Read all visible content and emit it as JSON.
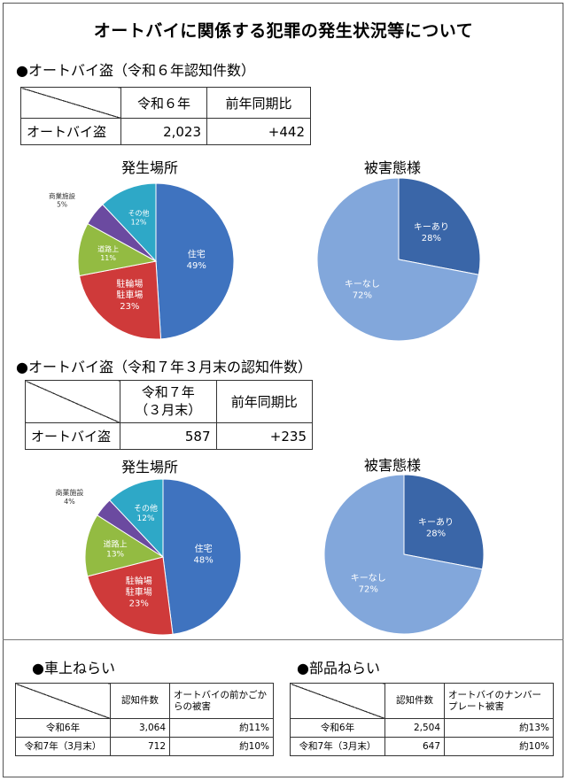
{
  "title": "オートバイに関係する犯罪の発生状況等について",
  "section1": {
    "heading": "●オートバイ盗（令和６年認知件数）",
    "table": {
      "col1": "令和６年",
      "col2": "前年同期比",
      "row_label": "オートバイ盗",
      "count": "2,023",
      "change": "+442"
    }
  },
  "section2": {
    "heading": "●オートバイ盗（令和７年３月末の認知件数）",
    "table": {
      "col1_line1": "令和７年",
      "col1_line2": "（３月末）",
      "col2": "前年同期比",
      "row_label": "オートバイ盗",
      "count": "587",
      "change": "+235"
    }
  },
  "chart_data": [
    {
      "type": "pie",
      "title": "発生場所",
      "categories": [
        "住宅",
        "駐輪場 駐車場",
        "道路上",
        "商業施設",
        "その他"
      ],
      "values": [
        49,
        23,
        11,
        5,
        12
      ],
      "unit": "%",
      "colors": [
        "#3f73bf",
        "#cf3a3a",
        "#93bb42",
        "#6b4aa0",
        "#2ea8c7"
      ]
    },
    {
      "type": "pie",
      "title": "被害態様",
      "categories": [
        "キーあり",
        "キーなし"
      ],
      "values": [
        28,
        72
      ],
      "unit": "%",
      "colors": [
        "#3a66a8",
        "#82a7db"
      ]
    },
    {
      "type": "pie",
      "title": "発生場所",
      "categories": [
        "住宅",
        "駐輪場 駐車場",
        "道路上",
        "商業施設",
        "その他"
      ],
      "values": [
        48,
        23,
        13,
        4,
        12
      ],
      "unit": "%",
      "colors": [
        "#3f73bf",
        "#cf3a3a",
        "#93bb42",
        "#6b4aa0",
        "#2ea8c7"
      ]
    },
    {
      "type": "pie",
      "title": "被害態様",
      "categories": [
        "キーあり",
        "キーなし"
      ],
      "values": [
        28,
        72
      ],
      "unit": "%",
      "colors": [
        "#3a66a8",
        "#82a7db"
      ]
    }
  ],
  "bottom_left": {
    "heading": "●車上ねらい",
    "header_count": "認知件数",
    "header_damage": "オートバイの前かごからの被害",
    "rows": [
      {
        "label": "令和6年",
        "count": "3,064",
        "ratio": "約11%"
      },
      {
        "label": "令和7年（3月末）",
        "count": "712",
        "ratio": "約10%"
      }
    ]
  },
  "bottom_right": {
    "heading": "●部品ねらい",
    "header_count": "認知件数",
    "header_damage": "オートバイのナンバープレート被害",
    "rows": [
      {
        "label": "令和6年",
        "count": "2,504",
        "ratio": "約13%"
      },
      {
        "label": "令和7年（3月末）",
        "count": "647",
        "ratio": "約10%"
      }
    ]
  }
}
